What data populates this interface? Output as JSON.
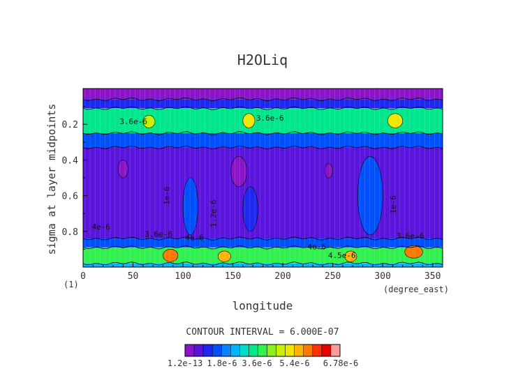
{
  "chart_data": {
    "type": "heatmap",
    "title": "H2OLiq",
    "xlabel": "longitude",
    "ylabel": "sigma at layer midpoints",
    "x_unit_label": "(degree_east)",
    "y_unit_label": "(1)",
    "xlim": [
      0,
      360
    ],
    "ylim": [
      0.0,
      1.0
    ],
    "y_inverted": true,
    "x_ticks": [
      "0",
      "50",
      "100",
      "150",
      "200",
      "250",
      "300",
      "350"
    ],
    "x_tick_values": [
      0,
      50,
      100,
      150,
      200,
      250,
      300,
      350
    ],
    "y_ticks": [
      "0.2",
      "0.4",
      "0.6",
      "0.8"
    ],
    "y_tick_values": [
      0.2,
      0.4,
      0.6,
      0.8
    ],
    "contour_interval_label": "CONTOUR INTERVAL = 6.000E-07",
    "colorbar": {
      "labels": [
        "1.2e-13",
        "1.8e-6",
        "3.6e-6",
        "5.4e-6",
        "6.78e-6"
      ],
      "min": 1.2e-13,
      "max": 6.78e-06,
      "colors": [
        "#8c14c8",
        "#5a14dc",
        "#1e28f0",
        "#0050ff",
        "#0a82ff",
        "#00b4ff",
        "#00dcc8",
        "#00e68c",
        "#32f050",
        "#8cf01e",
        "#c8f000",
        "#f0e600",
        "#ffb400",
        "#ff7800",
        "#ff3200",
        "#e60000",
        "#ff9a9a"
      ]
    },
    "contour_labels": [
      "4e-6",
      "3.6e-6",
      "4e-6",
      "1e-6",
      "1.2e-6",
      "3.6e-6",
      "4e-6",
      "4.5e-6",
      "1e-6",
      "3.6e-6",
      "3.6e-6"
    ],
    "levels": [
      {
        "sigma_range": [
          0.0,
          0.06
        ],
        "value": 1e-07
      },
      {
        "sigma_range": [
          0.06,
          0.11
        ],
        "value": 1.2e-06
      },
      {
        "sigma_range": [
          0.11,
          0.25
        ],
        "value": 3.3e-06
      },
      {
        "sigma_range": [
          0.25,
          0.33
        ],
        "value": 1.4e-06
      },
      {
        "sigma_range": [
          0.33,
          0.84
        ],
        "value": 6e-07
      },
      {
        "sigma_range": [
          0.84,
          0.89
        ],
        "value": 1.6e-06
      },
      {
        "sigma_range": [
          0.89,
          0.98
        ],
        "value": 3.7e-06
      },
      {
        "sigma_range": [
          0.98,
          1.0
        ],
        "value": 2.4e-06
      }
    ],
    "features": [
      {
        "lon": [
          148,
          164
        ],
        "sigma": [
          0.38,
          0.55
        ],
        "value": 4e-07
      },
      {
        "lon": [
          35,
          45
        ],
        "sigma": [
          0.4,
          0.5
        ],
        "value": 4e-07
      },
      {
        "lon": [
          242,
          250
        ],
        "sigma": [
          0.42,
          0.5
        ],
        "value": 4e-07
      },
      {
        "lon": [
          275,
          300
        ],
        "sigma": [
          0.38,
          0.82
        ],
        "value": 1.6e-06
      },
      {
        "lon": [
          100,
          115
        ],
        "sigma": [
          0.5,
          0.82
        ],
        "value": 1.3e-06
      },
      {
        "lon": [
          160,
          175
        ],
        "sigma": [
          0.55,
          0.8
        ],
        "value": 1.2e-06
      },
      {
        "lon": [
          80,
          95
        ],
        "sigma": [
          0.9,
          0.97
        ],
        "value": 5.6e-06
      },
      {
        "lon": [
          135,
          148
        ],
        "sigma": [
          0.91,
          0.97
        ],
        "value": 5.4e-06
      },
      {
        "lon": [
          262,
          274
        ],
        "sigma": [
          0.91,
          0.97
        ],
        "value": 5.5e-06
      },
      {
        "lon": [
          322,
          340
        ],
        "sigma": [
          0.88,
          0.95
        ],
        "value": 5.6e-06
      },
      {
        "lon": [
          305,
          320
        ],
        "sigma": [
          0.14,
          0.22
        ],
        "value": 5e-06
      },
      {
        "lon": [
          160,
          172
        ],
        "sigma": [
          0.14,
          0.22
        ],
        "value": 4.8e-06
      },
      {
        "lon": [
          60,
          72
        ],
        "sigma": [
          0.15,
          0.22
        ],
        "value": 4.6e-06
      }
    ]
  }
}
